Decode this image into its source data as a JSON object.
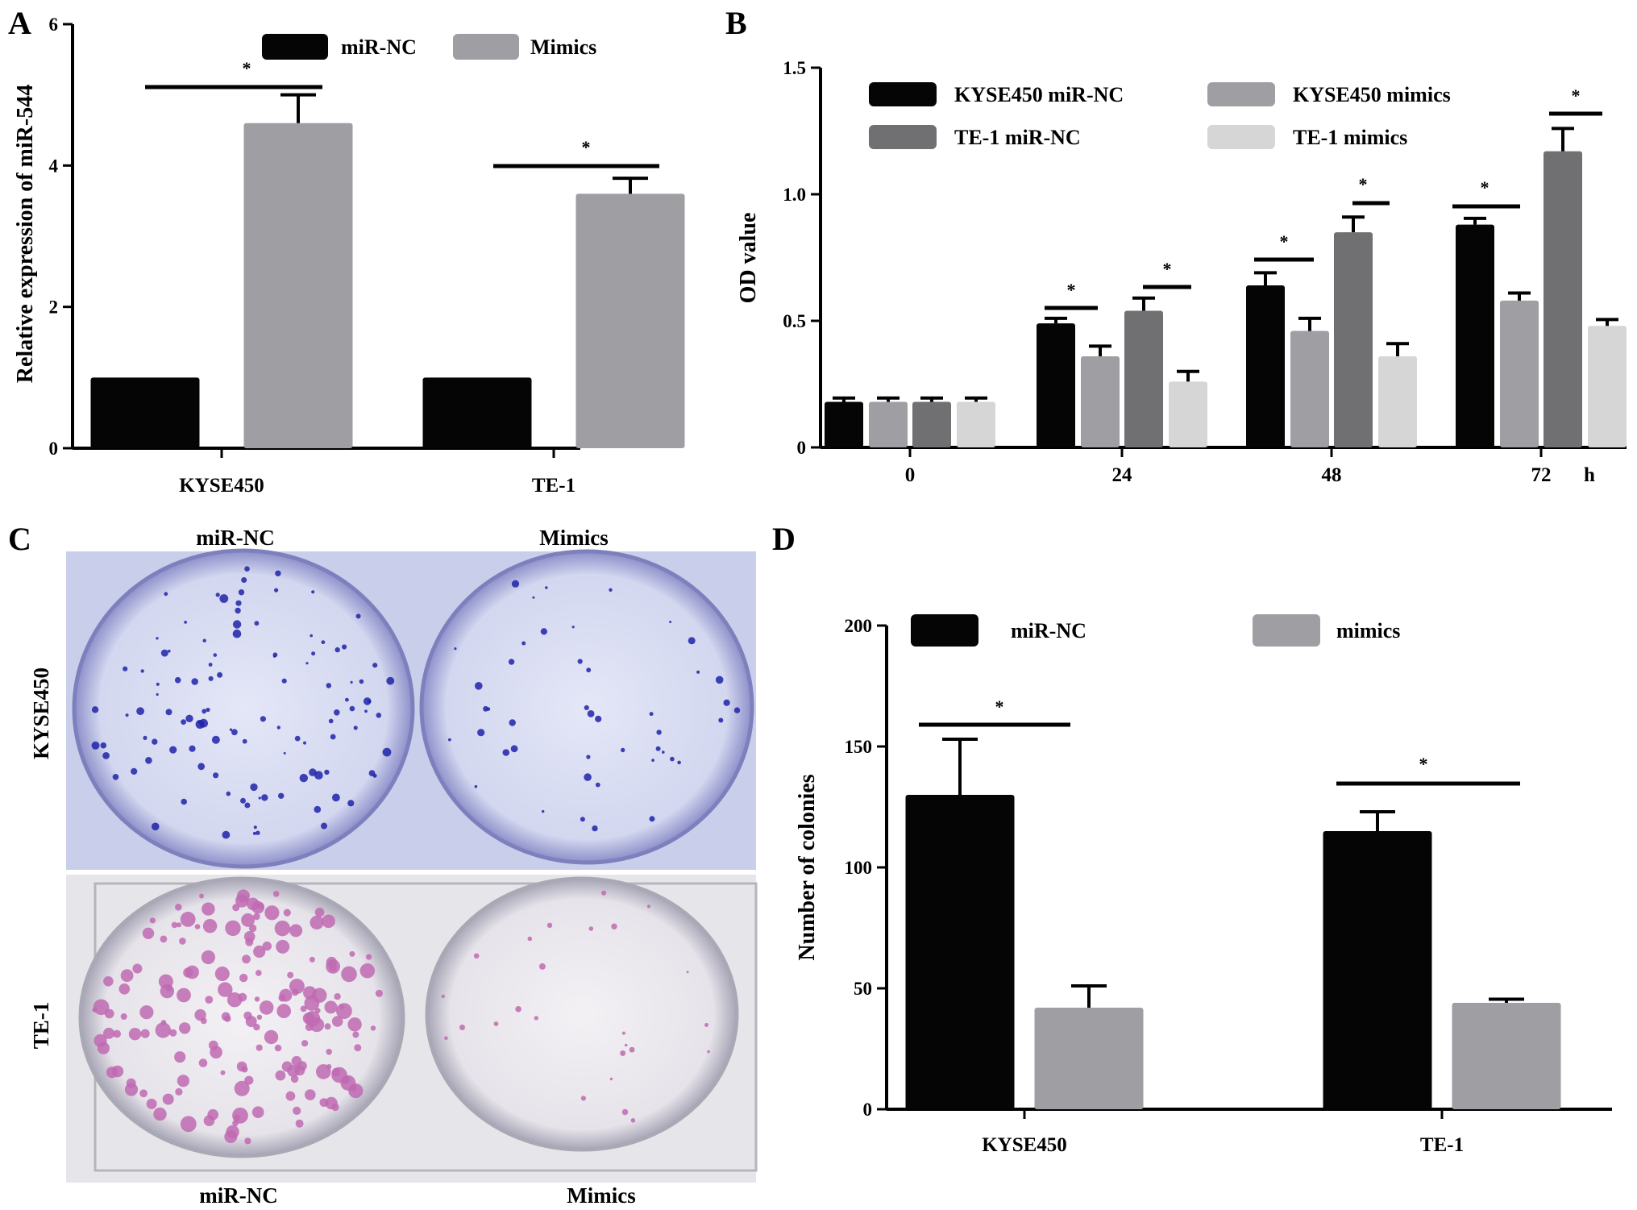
{
  "panels": {
    "a_letter": "A",
    "b_letter": "B",
    "c_letter": "C",
    "d_letter": "D"
  },
  "colors": {
    "black": "#050505",
    "gray": "#9e9ea3",
    "dark_gray": "#707072",
    "light_gray": "#d6d6d6",
    "plate_blue_bg": "#ccd1ec",
    "plate_pink_bg": "#ececf0",
    "colony_blue": "#1e23a8",
    "colony_pink": "#c06ab2"
  },
  "photo": {
    "col_labels_top": [
      "miR-NC",
      "Mimics"
    ],
    "col_labels_bottom": [
      "miR-NC",
      "Mimics"
    ],
    "row_labels": [
      "KYSE450",
      "TE-1"
    ]
  },
  "chart_data": [
    {
      "panel": "A",
      "type": "bar",
      "categories": [
        "KYSE450",
        "TE-1"
      ],
      "series": [
        {
          "name": "miR-NC",
          "values": [
            1.0,
            1.0
          ],
          "errors": [
            0.0,
            0.0
          ],
          "color": "#050505"
        },
        {
          "name": "Mimics",
          "values": [
            4.6,
            3.6
          ],
          "errors": [
            0.4,
            0.22
          ],
          "color": "#9e9ea3"
        }
      ],
      "ylabel": "Relative expression of miR-544",
      "ylim": [
        0,
        6
      ],
      "yticks": [
        "0",
        "2",
        "4",
        "6"
      ],
      "significance": [
        "*",
        "*"
      ],
      "legend": "top"
    },
    {
      "panel": "B",
      "type": "bar",
      "categories": [
        "0",
        "24",
        "48",
        "72"
      ],
      "x_unit": "h",
      "series": [
        {
          "name": "KYSE450 miR-NC",
          "values": [
            0.18,
            0.49,
            0.64,
            0.88
          ],
          "errors": [
            0.015,
            0.02,
            0.05,
            0.025
          ],
          "color": "#050505"
        },
        {
          "name": "KYSE450  mimics",
          "values": [
            0.18,
            0.36,
            0.46,
            0.58
          ],
          "errors": [
            0.015,
            0.04,
            0.05,
            0.03
          ],
          "color": "#9e9ea3"
        },
        {
          "name": "TE-1 miR-NC",
          "values": [
            0.18,
            0.54,
            0.85,
            1.17
          ],
          "errors": [
            0.015,
            0.05,
            0.06,
            0.09
          ],
          "color": "#707072"
        },
        {
          "name": "TE-1 mimics",
          "values": [
            0.18,
            0.26,
            0.36,
            0.48
          ],
          "errors": [
            0.015,
            0.04,
            0.05,
            0.025
          ],
          "color": "#d6d6d6"
        }
      ],
      "ylabel": "OD value",
      "ylim": [
        0,
        1.5
      ],
      "yticks": [
        "0",
        "0.5",
        "1.0",
        "1.5"
      ],
      "significance": [
        "*",
        "*",
        "*",
        "*",
        "*",
        "*"
      ],
      "legend": "top"
    },
    {
      "panel": "D",
      "type": "bar",
      "categories": [
        "KYSE450",
        "TE-1"
      ],
      "series": [
        {
          "name": "miR-NC",
          "values": [
            130,
            115
          ],
          "errors": [
            23,
            8
          ],
          "color": "#050505"
        },
        {
          "name": "mimics",
          "values": [
            42,
            44
          ],
          "errors": [
            9,
            1.5
          ],
          "color": "#9e9ea3"
        }
      ],
      "ylabel": "Number of colonies",
      "ylim": [
        0,
        200
      ],
      "yticks": [
        "0",
        "50",
        "100",
        "150",
        "200"
      ],
      "significance": [
        "*",
        "*"
      ],
      "legend": "top"
    }
  ]
}
